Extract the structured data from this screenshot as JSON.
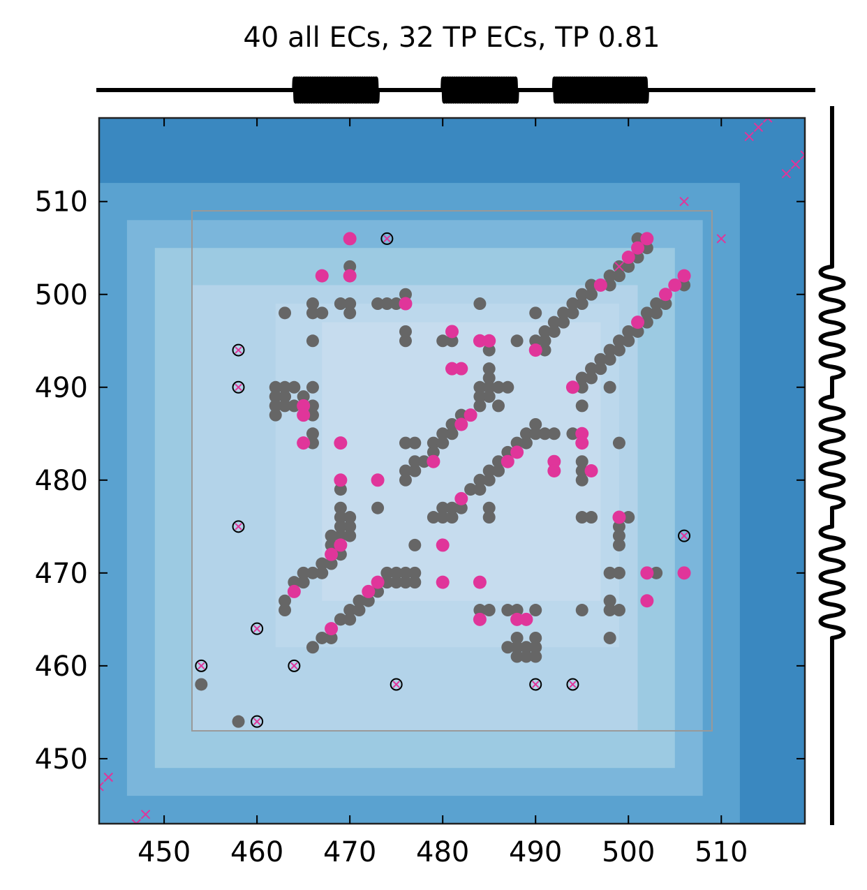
{
  "chart_data": {
    "type": "scatter",
    "title": "40 all ECs, 32 TP ECs, TP 0.81",
    "xlabel": "",
    "ylabel": "",
    "xlim": [
      443,
      519
    ],
    "ylim": [
      443,
      519
    ],
    "x_ticks": [
      450,
      460,
      470,
      480,
      490,
      500,
      510
    ],
    "y_ticks": [
      450,
      460,
      470,
      480,
      490,
      500,
      510
    ],
    "x_tick_labels": [
      "450",
      "460",
      "470",
      "480",
      "490",
      "500",
      "510"
    ],
    "y_tick_labels": [
      "450",
      "460",
      "470",
      "480",
      "490",
      "500",
      "510"
    ],
    "grid": false,
    "legend": "none",
    "colors": {
      "contact": "#666666",
      "ec": "#e0359a",
      "outline": "#000000",
      "frame": "#999999",
      "background_dark": "#3a88c0",
      "background_light": "#c6dcee"
    },
    "background_bands": [
      {
        "range": [
          443,
          519
        ],
        "color": "#3a88c0"
      },
      {
        "range": [
          443,
          512
        ],
        "color": "#5aa2d0"
      },
      {
        "range": [
          446,
          508
        ],
        "color": "#7bb6db"
      },
      {
        "range": [
          449,
          505
        ],
        "color": "#9ccae2"
      },
      {
        "range": [
          453,
          501
        ],
        "color": "#b3d3e9"
      },
      {
        "range": [
          462,
          499
        ],
        "color": "#bcd8ec"
      },
      {
        "range": [
          467,
          497
        ],
        "color": "#c6dcee"
      }
    ],
    "frame_box": {
      "x": [
        453,
        509
      ],
      "y": [
        453,
        509
      ]
    },
    "secondary_structure": {
      "x_helices": [
        [
          464,
          473
        ],
        [
          480,
          488
        ],
        [
          492,
          502
        ]
      ],
      "y_helices": [
        [
          491,
          503
        ],
        [
          477,
          489
        ],
        [
          463,
          475
        ]
      ]
    },
    "series": [
      {
        "name": "",
        "marker": "filled-gray",
        "points": [
          [
            466,
            499
          ],
          [
            466,
            498
          ],
          [
            467,
            498
          ],
          [
            463,
            498
          ],
          [
            466,
            495
          ],
          [
            469,
            499
          ],
          [
            470,
            499
          ],
          [
            470,
            498
          ],
          [
            470,
            503
          ],
          [
            473,
            499
          ],
          [
            474,
            499
          ],
          [
            475,
            499
          ],
          [
            476,
            500
          ],
          [
            476,
            496
          ],
          [
            476,
            495
          ],
          [
            462,
            490
          ],
          [
            462,
            489
          ],
          [
            462,
            488
          ],
          [
            463,
            490
          ],
          [
            463,
            489
          ],
          [
            463,
            488
          ],
          [
            462,
            487
          ],
          [
            464,
            490
          ],
          [
            464,
            488
          ],
          [
            465,
            489
          ],
          [
            466,
            490
          ],
          [
            466,
            488
          ],
          [
            466,
            487
          ],
          [
            466,
            485
          ],
          [
            466,
            484
          ],
          [
            458,
            454
          ],
          [
            454,
            458
          ],
          [
            463,
            466
          ],
          [
            463,
            467
          ],
          [
            464,
            468
          ],
          [
            464,
            469
          ],
          [
            465,
            469
          ],
          [
            465,
            470
          ],
          [
            466,
            470
          ],
          [
            467,
            470
          ],
          [
            467,
            471
          ],
          [
            468,
            471
          ],
          [
            468,
            472
          ],
          [
            469,
            472
          ],
          [
            468,
            473
          ],
          [
            468,
            474
          ],
          [
            469,
            473
          ],
          [
            469,
            474
          ],
          [
            469,
            475
          ],
          [
            470,
            474
          ],
          [
            470,
            475
          ],
          [
            469,
            476
          ],
          [
            470,
            476
          ],
          [
            469,
            477
          ],
          [
            469,
            479
          ],
          [
            466,
            462
          ],
          [
            467,
            463
          ],
          [
            468,
            463
          ],
          [
            468,
            464
          ],
          [
            469,
            465
          ],
          [
            470,
            465
          ],
          [
            470,
            466
          ],
          [
            471,
            466
          ],
          [
            471,
            467
          ],
          [
            472,
            467
          ],
          [
            472,
            468
          ],
          [
            473,
            468
          ],
          [
            473,
            469
          ],
          [
            474,
            469
          ],
          [
            474,
            470
          ],
          [
            475,
            469
          ],
          [
            475,
            470
          ],
          [
            476,
            469
          ],
          [
            476,
            470
          ],
          [
            477,
            469
          ],
          [
            477,
            470
          ],
          [
            477,
            473
          ],
          [
            473,
            477
          ],
          [
            476,
            480
          ],
          [
            476,
            481
          ],
          [
            477,
            481
          ],
          [
            477,
            482
          ],
          [
            478,
            482
          ],
          [
            479,
            483
          ],
          [
            479,
            484
          ],
          [
            480,
            484
          ],
          [
            480,
            485
          ],
          [
            481,
            485
          ],
          [
            481,
            486
          ],
          [
            482,
            486
          ],
          [
            482,
            487
          ],
          [
            483,
            487
          ],
          [
            476,
            484
          ],
          [
            477,
            484
          ],
          [
            479,
            476
          ],
          [
            480,
            476
          ],
          [
            480,
            477
          ],
          [
            481,
            476
          ],
          [
            481,
            477
          ],
          [
            482,
            477
          ],
          [
            483,
            479
          ],
          [
            484,
            479
          ],
          [
            484,
            480
          ],
          [
            485,
            480
          ],
          [
            485,
            481
          ],
          [
            486,
            481
          ],
          [
            486,
            482
          ],
          [
            487,
            482
          ],
          [
            487,
            483
          ],
          [
            488,
            483
          ],
          [
            488,
            484
          ],
          [
            489,
            484
          ],
          [
            489,
            485
          ],
          [
            490,
            485
          ],
          [
            490,
            486
          ],
          [
            491,
            485
          ],
          [
            492,
            485
          ],
          [
            485,
            476
          ],
          [
            485,
            477
          ],
          [
            480,
            495
          ],
          [
            481,
            495
          ],
          [
            484,
            499
          ],
          [
            485,
            494
          ],
          [
            485,
            492
          ],
          [
            485,
            491
          ],
          [
            484,
            490
          ],
          [
            485,
            490
          ],
          [
            484,
            489
          ],
          [
            485,
            489
          ],
          [
            486,
            490
          ],
          [
            487,
            490
          ],
          [
            484,
            488
          ],
          [
            486,
            488
          ],
          [
            484,
            466
          ],
          [
            485,
            466
          ],
          [
            487,
            466
          ],
          [
            488,
            466
          ],
          [
            487,
            462
          ],
          [
            488,
            462
          ],
          [
            488,
            463
          ],
          [
            489,
            462
          ],
          [
            489,
            461
          ],
          [
            488,
            461
          ],
          [
            490,
            461
          ],
          [
            490,
            462
          ],
          [
            490,
            463
          ],
          [
            490,
            466
          ],
          [
            489,
            465
          ],
          [
            488,
            495
          ],
          [
            490,
            495
          ],
          [
            490,
            498
          ],
          [
            491,
            494
          ],
          [
            491,
            495
          ],
          [
            491,
            496
          ],
          [
            492,
            496
          ],
          [
            492,
            497
          ],
          [
            493,
            497
          ],
          [
            493,
            498
          ],
          [
            494,
            498
          ],
          [
            494,
            499
          ],
          [
            495,
            499
          ],
          [
            495,
            500
          ],
          [
            496,
            500
          ],
          [
            496,
            501
          ],
          [
            497,
            501
          ],
          [
            498,
            501
          ],
          [
            498,
            502
          ],
          [
            499,
            502
          ],
          [
            499,
            503
          ],
          [
            500,
            503
          ],
          [
            500,
            504
          ],
          [
            501,
            504
          ],
          [
            501,
            505
          ],
          [
            501,
            506
          ],
          [
            502,
            505
          ],
          [
            495,
            491
          ],
          [
            496,
            491
          ],
          [
            496,
            492
          ],
          [
            497,
            492
          ],
          [
            497,
            493
          ],
          [
            498,
            493
          ],
          [
            498,
            494
          ],
          [
            499,
            494
          ],
          [
            499,
            495
          ],
          [
            500,
            495
          ],
          [
            500,
            496
          ],
          [
            501,
            496
          ],
          [
            502,
            497
          ],
          [
            502,
            498
          ],
          [
            503,
            498
          ],
          [
            503,
            499
          ],
          [
            504,
            499
          ],
          [
            506,
            501
          ],
          [
            495,
            490
          ],
          [
            495,
            488
          ],
          [
            494,
            485
          ],
          [
            495,
            484
          ],
          [
            495,
            482
          ],
          [
            495,
            481
          ],
          [
            495,
            480
          ],
          [
            498,
            490
          ],
          [
            499,
            484
          ],
          [
            495,
            476
          ],
          [
            496,
            476
          ],
          [
            499,
            475
          ],
          [
            499,
            474
          ],
          [
            499,
            473
          ],
          [
            500,
            476
          ],
          [
            495,
            466
          ],
          [
            498,
            470
          ],
          [
            499,
            470
          ],
          [
            498,
            467
          ],
          [
            498,
            466
          ],
          [
            499,
            466
          ],
          [
            498,
            463
          ],
          [
            503,
            470
          ]
        ]
      },
      {
        "name": "",
        "marker": "filled-pink",
        "points": [
          [
            467,
            502
          ],
          [
            470,
            506
          ],
          [
            470,
            502
          ],
          [
            476,
            499
          ],
          [
            481,
            496
          ],
          [
            481,
            492
          ],
          [
            482,
            492
          ],
          [
            484,
            495
          ],
          [
            485,
            495
          ],
          [
            490,
            494
          ],
          [
            465,
            488
          ],
          [
            465,
            487
          ],
          [
            465,
            484
          ],
          [
            469,
            484
          ],
          [
            469,
            480
          ],
          [
            473,
            480
          ],
          [
            479,
            482
          ],
          [
            482,
            486
          ],
          [
            483,
            487
          ],
          [
            482,
            478
          ],
          [
            487,
            482
          ],
          [
            488,
            483
          ],
          [
            480,
            473
          ],
          [
            469,
            473
          ],
          [
            468,
            472
          ],
          [
            464,
            468
          ],
          [
            472,
            468
          ],
          [
            473,
            469
          ],
          [
            480,
            469
          ],
          [
            484,
            469
          ],
          [
            468,
            464
          ],
          [
            484,
            465
          ],
          [
            488,
            465
          ],
          [
            489,
            465
          ],
          [
            494,
            490
          ],
          [
            495,
            485
          ],
          [
            495,
            484
          ],
          [
            496,
            481
          ],
          [
            492,
            482
          ],
          [
            492,
            481
          ],
          [
            499,
            476
          ],
          [
            502,
            470
          ],
          [
            502,
            467
          ],
          [
            506,
            470
          ],
          [
            501,
            497
          ],
          [
            504,
            500
          ],
          [
            505,
            501
          ],
          [
            506,
            502
          ],
          [
            497,
            501
          ],
          [
            500,
            504
          ],
          [
            501,
            505
          ],
          [
            502,
            506
          ]
        ]
      },
      {
        "name": "",
        "marker": "circled-x",
        "points": [
          [
            474,
            506
          ],
          [
            458,
            494
          ],
          [
            458,
            490
          ],
          [
            458,
            475
          ],
          [
            460,
            464
          ],
          [
            454,
            460
          ],
          [
            464,
            460
          ],
          [
            460,
            454
          ],
          [
            475,
            458
          ],
          [
            490,
            458
          ],
          [
            494,
            458
          ],
          [
            506,
            474
          ]
        ]
      },
      {
        "name": "",
        "marker": "x",
        "points": [
          [
            499,
            503
          ],
          [
            506,
            510
          ],
          [
            510,
            506
          ],
          [
            513,
            517
          ],
          [
            514,
            518
          ],
          [
            515,
            519
          ],
          [
            517,
            513
          ],
          [
            518,
            514
          ],
          [
            519,
            515
          ],
          [
            443,
            447
          ],
          [
            444,
            448
          ],
          [
            447,
            443
          ],
          [
            448,
            444
          ]
        ]
      }
    ]
  }
}
